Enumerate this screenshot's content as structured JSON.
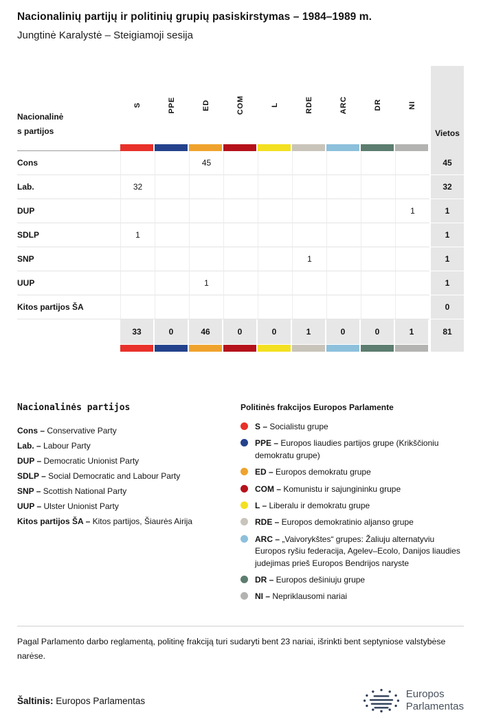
{
  "header": {
    "title": "Nacionalinių partijų ir politinių grupių pasiskirstymas – 1984–1989 m.",
    "subtitle": "Jungtinė Karalystė – Steigiamoji sesija"
  },
  "chart_data": {
    "type": "table",
    "title": "Nacionalinių partijų ir politinių grupių pasiskirstymas – 1984–1989 m.",
    "subtitle": "Jungtinė Karalystė – Steigiamoji sesija",
    "columns": [
      "S",
      "PPE",
      "ED",
      "COM",
      "L",
      "RDE",
      "ARC",
      "DR",
      "NI",
      "Vietos"
    ],
    "rows": [
      {
        "party": "Cons",
        "S": 0,
        "PPE": 0,
        "ED": 45,
        "COM": 0,
        "L": 0,
        "RDE": 0,
        "ARC": 0,
        "DR": 0,
        "NI": 0,
        "Vietos": 45
      },
      {
        "party": "Lab.",
        "S": 32,
        "PPE": 0,
        "ED": 0,
        "COM": 0,
        "L": 0,
        "RDE": 0,
        "ARC": 0,
        "DR": 0,
        "NI": 0,
        "Vietos": 32
      },
      {
        "party": "DUP",
        "S": 0,
        "PPE": 0,
        "ED": 0,
        "COM": 0,
        "L": 0,
        "RDE": 0,
        "ARC": 0,
        "DR": 0,
        "NI": 1,
        "Vietos": 1
      },
      {
        "party": "SDLP",
        "S": 1,
        "PPE": 0,
        "ED": 0,
        "COM": 0,
        "L": 0,
        "RDE": 0,
        "ARC": 0,
        "DR": 0,
        "NI": 0,
        "Vietos": 1
      },
      {
        "party": "SNP",
        "S": 0,
        "PPE": 0,
        "ED": 0,
        "COM": 0,
        "L": 0,
        "RDE": 1,
        "ARC": 0,
        "DR": 0,
        "NI": 0,
        "Vietos": 1
      },
      {
        "party": "UUP",
        "S": 0,
        "PPE": 0,
        "ED": 1,
        "COM": 0,
        "L": 0,
        "RDE": 0,
        "ARC": 0,
        "DR": 0,
        "NI": 0,
        "Vietos": 1
      },
      {
        "party": "Kitos partijos ŠA",
        "S": 0,
        "PPE": 0,
        "ED": 0,
        "COM": 0,
        "L": 0,
        "RDE": 0,
        "ARC": 0,
        "DR": 0,
        "NI": 0,
        "Vietos": 0
      }
    ],
    "totals": {
      "S": 33,
      "PPE": 0,
      "ED": 46,
      "COM": 0,
      "L": 0,
      "RDE": 1,
      "ARC": 0,
      "DR": 0,
      "NI": 1,
      "Vietos": 81
    }
  },
  "table": {
    "row_header_label": "Nacionalinės partijos",
    "seats_label": "Vietos",
    "groups": [
      {
        "id": "S",
        "color": "#e8312a"
      },
      {
        "id": "PPE",
        "color": "#24428c"
      },
      {
        "id": "ED",
        "color": "#efa32d"
      },
      {
        "id": "COM",
        "color": "#b5121b"
      },
      {
        "id": "L",
        "color": "#f3e020"
      },
      {
        "id": "RDE",
        "color": "#c9c4ba"
      },
      {
        "id": "ARC",
        "color": "#8dc0db"
      },
      {
        "id": "DR",
        "color": "#5c7d6f"
      },
      {
        "id": "NI",
        "color": "#b3b3b1"
      }
    ],
    "rows": [
      {
        "party": "Cons",
        "values": [
          "",
          "",
          "45",
          "",
          "",
          "",
          "",
          "",
          ""
        ],
        "total": "45"
      },
      {
        "party": "Lab.",
        "values": [
          "32",
          "",
          "",
          "",
          "",
          "",
          "",
          "",
          ""
        ],
        "total": "32"
      },
      {
        "party": "DUP",
        "values": [
          "",
          "",
          "",
          "",
          "",
          "",
          "",
          "",
          "1"
        ],
        "total": "1"
      },
      {
        "party": "SDLP",
        "values": [
          "1",
          "",
          "",
          "",
          "",
          "",
          "",
          "",
          ""
        ],
        "total": "1"
      },
      {
        "party": "SNP",
        "values": [
          "",
          "",
          "",
          "",
          "",
          "1",
          "",
          "",
          ""
        ],
        "total": "1"
      },
      {
        "party": "UUP",
        "values": [
          "",
          "",
          "1",
          "",
          "",
          "",
          "",
          "",
          ""
        ],
        "total": "1"
      },
      {
        "party": "Kitos partijos ŠA",
        "values": [
          "",
          "",
          "",
          "",
          "",
          "",
          "",
          "",
          ""
        ],
        "total": "0"
      }
    ],
    "totals": {
      "values": [
        "33",
        "0",
        "46",
        "0",
        "0",
        "1",
        "0",
        "0",
        "1"
      ],
      "total": "81"
    }
  },
  "legend_parties": {
    "title": "Nacionalinės partijos",
    "items": [
      {
        "abbr": "Cons –",
        "name": "Conservative Party"
      },
      {
        "abbr": "Lab. –",
        "name": "Labour Party"
      },
      {
        "abbr": "DUP –",
        "name": "Democratic Unionist Party"
      },
      {
        "abbr": "SDLP –",
        "name": "Social Democratic and Labour Party"
      },
      {
        "abbr": "SNP –",
        "name": "Scottish National Party"
      },
      {
        "abbr": "UUP –",
        "name": "Ulster Unionist Party"
      },
      {
        "abbr": "Kitos partijos ŠA –",
        "name": "Kitos partijos, Šiaurės Airija"
      }
    ]
  },
  "legend_groups": {
    "title": "Politinės frakcijos Europos Parlamente",
    "items": [
      {
        "abbr": "S –",
        "name": "Socialistu grupe",
        "color": "#e8312a"
      },
      {
        "abbr": "PPE –",
        "name": "Europos liaudies partijos grupe (Krikščioniu demokratu grupe)",
        "color": "#24428c"
      },
      {
        "abbr": "ED –",
        "name": "Europos demokratu grupe",
        "color": "#efa32d"
      },
      {
        "abbr": "COM –",
        "name": "Komunistu ir sajungininku grupe",
        "color": "#b5121b"
      },
      {
        "abbr": "L –",
        "name": "Liberalu ir demokratu grupe",
        "color": "#f3e020"
      },
      {
        "abbr": "RDE –",
        "name": "Europos demokratinio aljanso grupe",
        "color": "#c9c4ba"
      },
      {
        "abbr": "ARC –",
        "name": "„Vaivorykštes“ grupes: Žaliuju alternatyviu Europos ryšiu federacija, Agelev–Ecolo, Danijos liaudies judejimas prieš Europos Bendrijos naryste",
        "color": "#8dc0db"
      },
      {
        "abbr": "DR –",
        "name": "Europos dešiniuju grupe",
        "color": "#5c7d6f"
      },
      {
        "abbr": "NI –",
        "name": "Nepriklausomi nariai",
        "color": "#b3b3b1"
      }
    ]
  },
  "footer": {
    "note": "Pagal Parlamento darbo reglamentą, politinę frakciją turi sudaryti bent 23 nariai, išrinkti bent septyniose valstybėse narėse.",
    "source_label": "Šaltinis:",
    "source_value": "Europos Parlamentas",
    "logo_line1": "Europos",
    "logo_line2": "Parlamentas"
  }
}
